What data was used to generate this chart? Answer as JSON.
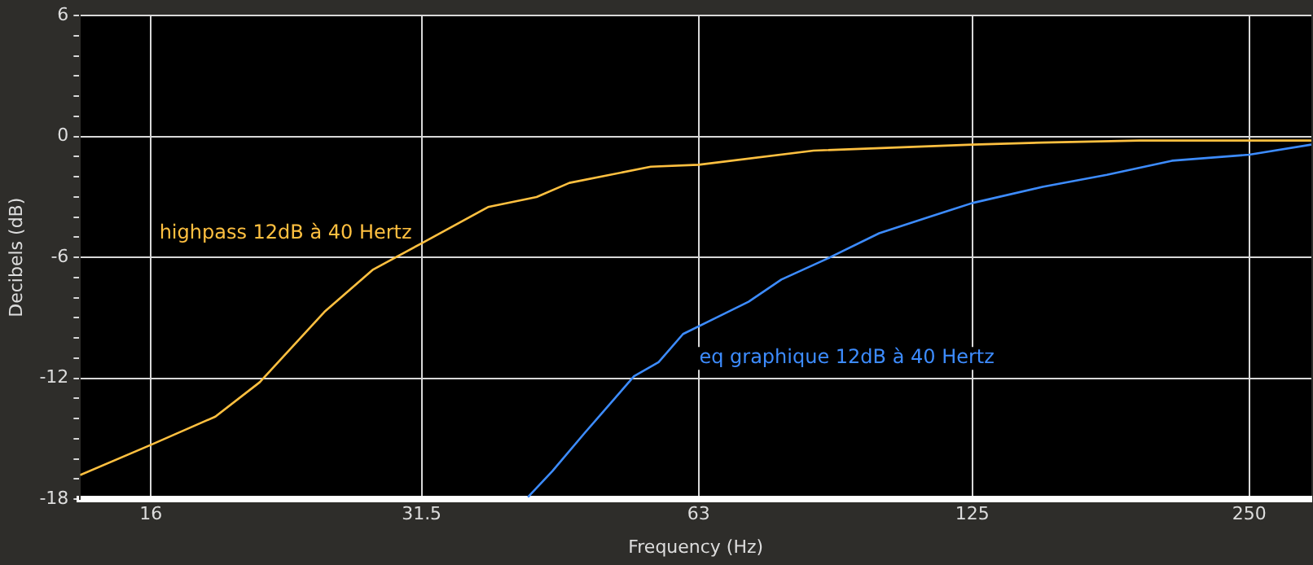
{
  "chart_data": {
    "type": "line",
    "xlabel": "Frequency (Hz)",
    "ylabel": "Decibels (dB)",
    "log": "x",
    "xlim": [
      13.4,
      292
    ],
    "xticks": [
      16,
      31.5,
      63,
      125,
      250
    ],
    "ylim": [
      -18,
      6
    ],
    "yticks": [
      -18,
      {
        "value": -17,
        "label": null
      },
      {
        "value": -16,
        "label": null
      },
      {
        "value": -15,
        "label": null
      },
      {
        "value": -14,
        "label": null
      },
      {
        "value": -13,
        "label": null
      },
      -12,
      {
        "value": -11,
        "label": null
      },
      {
        "value": -10,
        "label": null
      },
      {
        "value": -9,
        "label": null
      },
      {
        "value": -8,
        "label": null
      },
      {
        "value": -7,
        "label": null
      },
      -6,
      {
        "value": -5,
        "label": null
      },
      {
        "value": -4,
        "label": null
      },
      {
        "value": -3,
        "label": null
      },
      {
        "value": -2,
        "label": null
      },
      {
        "value": -1,
        "label": null
      },
      0,
      {
        "value": 1,
        "label": null
      },
      {
        "value": 2,
        "label": null
      },
      {
        "value": 3,
        "label": null
      },
      {
        "value": 4,
        "label": null
      },
      {
        "value": 5,
        "label": null
      },
      6
    ],
    "grid": true,
    "legend": false,
    "marker": "none",
    "line_style": "solid",
    "series": [
      {
        "name": "highpass 12dB à 40 Hertz",
        "color": "#ffc040",
        "x": [
          13.4,
          16,
          18.8,
          21,
          24.7,
          27.9,
          31.5,
          37.2,
          42,
          45.6,
          55.9,
          63,
          84,
          125,
          149,
          190,
          292
        ],
        "values": [
          -16.8,
          -15.3,
          -13.9,
          -12.2,
          -8.7,
          -6.6,
          -5.3,
          -3.5,
          -3.0,
          -2.3,
          -1.5,
          -1.4,
          -0.7,
          -0.4,
          -0.3,
          -0.2,
          -0.2
        ]
      },
      {
        "name": "eq graphique 12dB à 40 Hertz",
        "color": "#3d8cff",
        "x": [
          41.1,
          43.7,
          47.4,
          53.6,
          57,
          60.6,
          65.8,
          71.4,
          77.5,
          87.5,
          99,
          112,
          125,
          149,
          175,
          206,
          250,
          292
        ],
        "values": [
          -17.9,
          -16.6,
          -14.7,
          -11.9,
          -11.2,
          -9.8,
          -9.0,
          -8.2,
          -7.1,
          -6.0,
          -4.8,
          -4.0,
          -3.3,
          -2.5,
          -1.9,
          -1.2,
          -0.9,
          -0.4
        ]
      }
    ]
  }
}
